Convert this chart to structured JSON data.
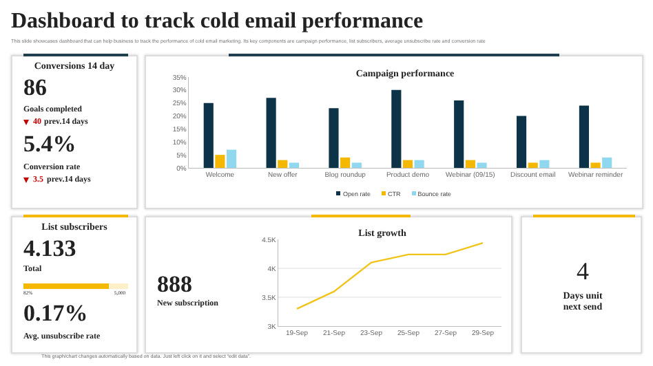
{
  "chart_data": [
    {
      "type": "other",
      "title": "Dashboard to track cold email performance",
      "subtitle": "This slide showcases dashboard that can help business to track the performance of cold email marketing. Its key components are campaign performance, list subscribers, average unsubscribe rate and conversion rate",
      "annotations": [
        "This graph/chart changes automatically based on data. Just left click on it and select “edit data”."
      ]
    },
    {
      "type": "other",
      "title": "Conversions 14 day",
      "annotations": [
        "86",
        "Goals completed",
        "40",
        "prev.14 days",
        "5.4%",
        "Conversion rate",
        "3.5",
        "prev.14 days"
      ]
    },
    {
      "type": "bar",
      "title": "Campaign performance",
      "categories": [
        "Welcome",
        "New offer",
        "Blog roundup",
        "Product demo",
        "Webinar (09/15)",
        "Discount email",
        "Webinar reminder"
      ],
      "series": [
        {
          "name": "Open rate",
          "color": "#0d3349",
          "values": [
            25,
            27,
            23,
            30,
            26,
            20,
            24
          ]
        },
        {
          "name": "CTR",
          "color": "#f5b800",
          "values": [
            5,
            3,
            4,
            3,
            3,
            2,
            2
          ]
        },
        {
          "name": "Bounce rate",
          "color": "#8fd8f0",
          "values": [
            7,
            2,
            2,
            3,
            2,
            3,
            4
          ]
        }
      ],
      "ylim": [
        0,
        35
      ],
      "yticks": [
        {
          "value": 0,
          "label": "0%"
        },
        {
          "value": 5,
          "label": "5%"
        },
        {
          "value": 10,
          "label": "10%"
        },
        {
          "value": 15,
          "label": "15%"
        },
        {
          "value": 20,
          "label": "20%"
        },
        {
          "value": 25,
          "label": "25%"
        },
        {
          "value": 30,
          "label": "30%"
        },
        {
          "value": 35,
          "label": "35%"
        }
      ],
      "grid": false,
      "legend": "bottom"
    },
    {
      "type": "other",
      "title": "List subscribers",
      "annotations": [
        "4.133",
        "Total",
        "5,000",
        "0.17%",
        "Avg. unsubscribe rate"
      ],
      "values": [
        82
      ],
      "value_labels": [
        "82%"
      ]
    },
    {
      "type": "other",
      "annotations": [
        "888",
        "New subscription"
      ]
    },
    {
      "type": "line",
      "title": "List growth",
      "x": [
        "--09-19",
        "--09-21",
        "--09-23",
        "--09-25",
        "--09-27",
        "--09-29"
      ],
      "series": [
        {
          "color": "#f0c419",
          "values": [
            3300,
            3600,
            4100,
            4240,
            4240,
            4440
          ]
        }
      ],
      "xlim": [
        "--09-18",
        "--09-30"
      ],
      "xticks": [
        {
          "value": "--09-19",
          "label": "19-Sep"
        },
        {
          "value": "--09-21",
          "label": "21-Sep"
        },
        {
          "value": "--09-23",
          "label": "23-Sep"
        },
        {
          "value": "--09-25",
          "label": "25-Sep"
        },
        {
          "value": "--09-27",
          "label": "27-Sep"
        },
        {
          "value": "--09-29",
          "label": "29-Sep"
        }
      ],
      "ylim": [
        3000,
        4500
      ],
      "yticks": [
        {
          "value": 3000,
          "label": "3K"
        },
        {
          "value": 3500,
          "label": "3.5K"
        },
        {
          "value": 4000,
          "label": "4K"
        },
        {
          "value": 4500,
          "label": "4.5K"
        }
      ],
      "grid": "y",
      "marker": "none",
      "line_style": "solid"
    },
    {
      "type": "other",
      "annotations": [
        "4",
        "Days unit next send"
      ]
    }
  ]
}
